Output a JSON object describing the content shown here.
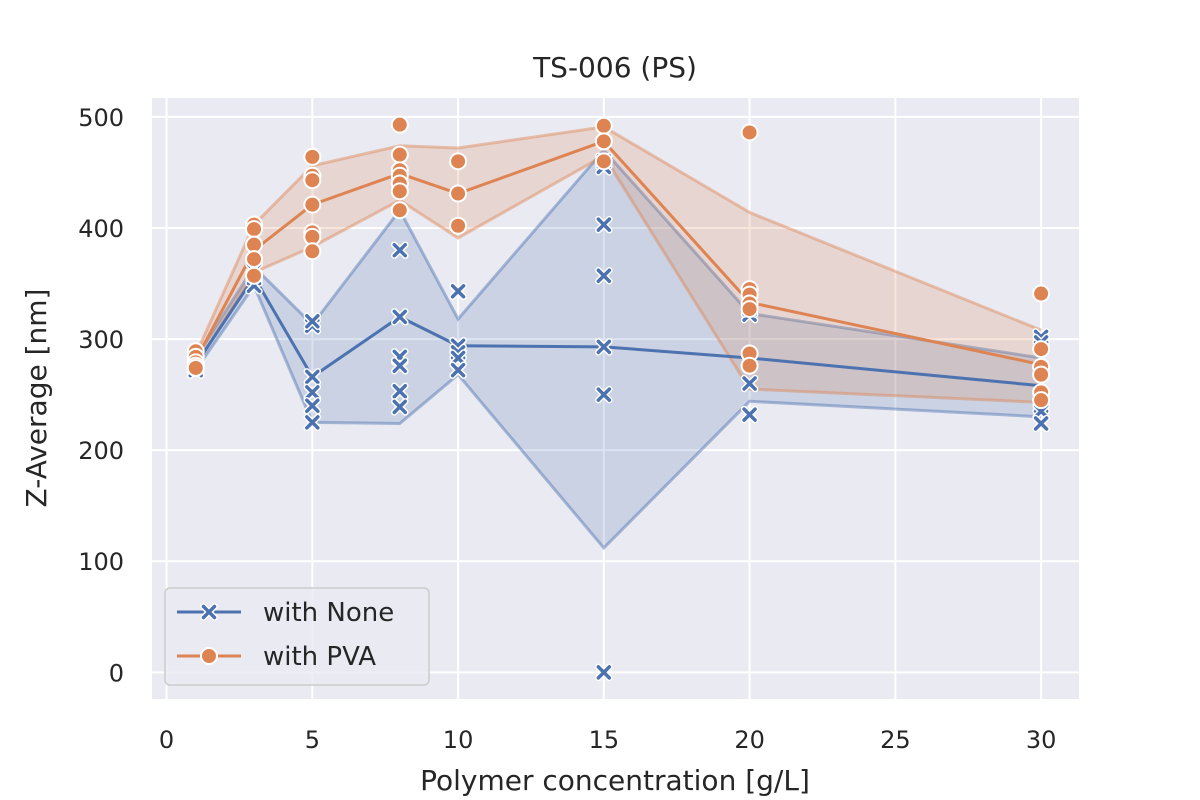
{
  "chart_data": {
    "type": "line",
    "title": "TS-006 (PS)",
    "xlabel": "Polymer concentration [g/L]",
    "ylabel": "Z-Average [nm]",
    "xlim": [
      -0.5,
      31.3
    ],
    "ylim": [
      -24,
      517
    ],
    "xticks": [
      0,
      5,
      10,
      15,
      20,
      25,
      30
    ],
    "yticks": [
      0,
      100,
      200,
      300,
      400,
      500
    ],
    "grid": true,
    "legend_position": "lower-left",
    "series": [
      {
        "name": "with None",
        "color": "#4c72b0",
        "marker": "x",
        "mean": [
          [
            1,
            277
          ],
          [
            3,
            356
          ],
          [
            5,
            266
          ],
          [
            8,
            320
          ],
          [
            10,
            294
          ],
          [
            15,
            293
          ],
          [
            20,
            283
          ],
          [
            30,
            258
          ]
        ],
        "ci_lower": [
          [
            1,
            272
          ],
          [
            3,
            348
          ],
          [
            5,
            225
          ],
          [
            8,
            224
          ],
          [
            10,
            268
          ],
          [
            15,
            112
          ],
          [
            20,
            244
          ],
          [
            30,
            230
          ]
        ],
        "ci_upper": [
          [
            1,
            283
          ],
          [
            3,
            365
          ],
          [
            5,
            313
          ],
          [
            8,
            416
          ],
          [
            10,
            318
          ],
          [
            15,
            470
          ],
          [
            20,
            323
          ],
          [
            30,
            283
          ]
        ],
        "points": [
          [
            1,
            272
          ],
          [
            1,
            276
          ],
          [
            1,
            280
          ],
          [
            1,
            283
          ],
          [
            3,
            348
          ],
          [
            3,
            355
          ],
          [
            3,
            362
          ],
          [
            5,
            312
          ],
          [
            5,
            316
          ],
          [
            5,
            266
          ],
          [
            5,
            252
          ],
          [
            5,
            240
          ],
          [
            5,
            225
          ],
          [
            8,
            380
          ],
          [
            8,
            320
          ],
          [
            8,
            284
          ],
          [
            8,
            276
          ],
          [
            8,
            253
          ],
          [
            8,
            239
          ],
          [
            10,
            343
          ],
          [
            10,
            294
          ],
          [
            10,
            288
          ],
          [
            10,
            283
          ],
          [
            10,
            272
          ],
          [
            15,
            460
          ],
          [
            15,
            455
          ],
          [
            15,
            403
          ],
          [
            15,
            357
          ],
          [
            15,
            293
          ],
          [
            15,
            250
          ],
          [
            15,
            0
          ],
          [
            20,
            322
          ],
          [
            20,
            327
          ],
          [
            20,
            260
          ],
          [
            20,
            232
          ],
          [
            30,
            302
          ],
          [
            30,
            297
          ],
          [
            30,
            240
          ],
          [
            30,
            235
          ],
          [
            30,
            224
          ]
        ]
      },
      {
        "name": "with PVA",
        "color": "#dd8452",
        "marker": "o",
        "mean": [
          [
            1,
            281
          ],
          [
            3,
            380
          ],
          [
            5,
            421
          ],
          [
            8,
            449
          ],
          [
            10,
            431
          ],
          [
            15,
            478
          ],
          [
            20,
            333
          ],
          [
            30,
            277
          ]
        ],
        "ci_lower": [
          [
            1,
            276
          ],
          [
            3,
            360
          ],
          [
            5,
            383
          ],
          [
            8,
            425
          ],
          [
            10,
            391
          ],
          [
            15,
            465
          ],
          [
            20,
            255
          ],
          [
            30,
            243
          ]
        ],
        "ci_upper": [
          [
            1,
            286
          ],
          [
            3,
            403
          ],
          [
            5,
            456
          ],
          [
            8,
            474
          ],
          [
            10,
            472
          ],
          [
            15,
            491
          ],
          [
            20,
            414
          ],
          [
            30,
            308
          ]
        ],
        "points": [
          [
            1,
            289
          ],
          [
            1,
            284
          ],
          [
            1,
            279
          ],
          [
            1,
            276
          ],
          [
            1,
            274
          ],
          [
            3,
            403
          ],
          [
            3,
            399
          ],
          [
            3,
            385
          ],
          [
            3,
            372
          ],
          [
            3,
            357
          ],
          [
            5,
            464
          ],
          [
            5,
            447
          ],
          [
            5,
            443
          ],
          [
            5,
            421
          ],
          [
            5,
            396
          ],
          [
            5,
            392
          ],
          [
            5,
            379
          ],
          [
            8,
            493
          ],
          [
            8,
            466
          ],
          [
            8,
            452
          ],
          [
            8,
            447
          ],
          [
            8,
            440
          ],
          [
            8,
            433
          ],
          [
            8,
            416
          ],
          [
            10,
            460
          ],
          [
            10,
            431
          ],
          [
            10,
            402
          ],
          [
            15,
            492
          ],
          [
            15,
            478
          ],
          [
            15,
            460
          ],
          [
            20,
            486
          ],
          [
            20,
            345
          ],
          [
            20,
            340
          ],
          [
            20,
            332
          ],
          [
            20,
            327
          ],
          [
            20,
            287
          ],
          [
            20,
            276
          ],
          [
            30,
            341
          ],
          [
            30,
            291
          ],
          [
            30,
            275
          ],
          [
            30,
            268
          ],
          [
            30,
            252
          ],
          [
            30,
            245
          ]
        ]
      }
    ]
  }
}
